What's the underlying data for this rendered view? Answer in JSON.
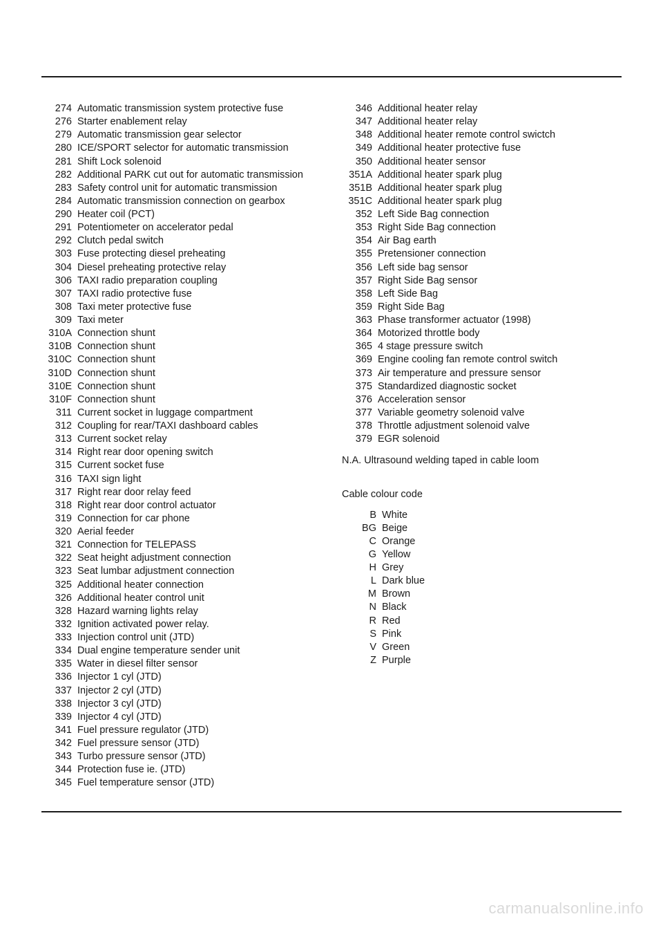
{
  "left_entries": [
    {
      "code": "274",
      "desc": "Automatic transmission system protective fuse"
    },
    {
      "code": "276",
      "desc": "Starter enablement relay"
    },
    {
      "code": "279",
      "desc": "Automatic transmission gear selector"
    },
    {
      "code": "280",
      "desc": "ICE/SPORT selector for automatic transmission"
    },
    {
      "code": "281",
      "desc": "Shift Lock solenoid"
    },
    {
      "code": "282",
      "desc": "Additional PARK cut out for automatic transmission"
    },
    {
      "code": "283",
      "desc": "Safety control unit for automatic transmission"
    },
    {
      "code": "284",
      "desc": "Automatic transmission connection on gearbox"
    },
    {
      "code": "290",
      "desc": "Heater coil (PCT)"
    },
    {
      "code": "291",
      "desc": "Potentiometer on accelerator pedal"
    },
    {
      "code": "292",
      "desc": "Clutch pedal switch"
    },
    {
      "code": "303",
      "desc": "Fuse protecting diesel preheating"
    },
    {
      "code": "304",
      "desc": "Diesel preheating protective relay"
    },
    {
      "code": "306",
      "desc": "TAXI radio preparation coupling"
    },
    {
      "code": "307",
      "desc": "TAXI radio protective fuse"
    },
    {
      "code": "308",
      "desc": "Taxi meter protective fuse"
    },
    {
      "code": "309",
      "desc": "Taxi meter"
    },
    {
      "code": "310A",
      "desc": "Connection shunt"
    },
    {
      "code": "310B",
      "desc": "Connection shunt"
    },
    {
      "code": "310C",
      "desc": "Connection shunt"
    },
    {
      "code": "310D",
      "desc": "Connection shunt"
    },
    {
      "code": "310E",
      "desc": "Connection shunt"
    },
    {
      "code": "310F",
      "desc": "Connection shunt"
    },
    {
      "code": "311",
      "desc": "Current socket in luggage compartment"
    },
    {
      "code": "312",
      "desc": "Coupling for rear/TAXI dashboard cables"
    },
    {
      "code": "313",
      "desc": "Current socket relay"
    },
    {
      "code": "314",
      "desc": "Right rear door opening switch"
    },
    {
      "code": "315",
      "desc": "Current socket fuse"
    },
    {
      "code": "316",
      "desc": "TAXI sign light"
    },
    {
      "code": "317",
      "desc": "Right rear door relay feed"
    },
    {
      "code": "318",
      "desc": "Right rear door control actuator"
    },
    {
      "code": "319",
      "desc": "Connection for car phone"
    },
    {
      "code": "320",
      "desc": "Aerial feeder"
    },
    {
      "code": "321",
      "desc": "Connection for TELEPASS"
    },
    {
      "code": "322",
      "desc": "Seat height adjustment connection"
    },
    {
      "code": "323",
      "desc": "Seat lumbar adjustment connection"
    },
    {
      "code": "325",
      "desc": "Additional heater connection"
    },
    {
      "code": "326",
      "desc": "Additional heater control unit"
    },
    {
      "code": "328",
      "desc": "Hazard warning lights relay"
    },
    {
      "code": "332",
      "desc": "Ignition activated power relay."
    },
    {
      "code": "333",
      "desc": "Injection control unit (JTD)"
    },
    {
      "code": "334",
      "desc": "Dual engine temperature sender unit"
    },
    {
      "code": "335",
      "desc": "Water in diesel filter sensor"
    },
    {
      "code": "336",
      "desc": "Injector 1 cyl (JTD)"
    },
    {
      "code": "337",
      "desc": "Injector 2 cyl (JTD)"
    },
    {
      "code": "338",
      "desc": "Injector 3 cyl (JTD)"
    },
    {
      "code": "339",
      "desc": "Injector 4 cyl (JTD)"
    },
    {
      "code": "341",
      "desc": "Fuel pressure regulator (JTD)"
    },
    {
      "code": "342",
      "desc": "Fuel pressure sensor (JTD)"
    },
    {
      "code": "343",
      "desc": "Turbo pressure sensor (JTD)"
    },
    {
      "code": "344",
      "desc": "Protection fuse ie. (JTD)"
    },
    {
      "code": "345",
      "desc": "Fuel temperature sensor (JTD)"
    }
  ],
  "right_entries": [
    {
      "code": "346",
      "desc": "Additional heater relay"
    },
    {
      "code": "347",
      "desc": "Additional heater relay"
    },
    {
      "code": "348",
      "desc": "Additional heater remote control swictch"
    },
    {
      "code": "349",
      "desc": "Additional heater protective fuse"
    },
    {
      "code": "350",
      "desc": "Additional heater sensor"
    },
    {
      "code": "351A",
      "desc": "Additional heater spark plug"
    },
    {
      "code": "351B",
      "desc": "Additional heater spark plug"
    },
    {
      "code": "351C",
      "desc": "Additional heater spark plug"
    },
    {
      "code": "352",
      "desc": "Left Side Bag connection"
    },
    {
      "code": "353",
      "desc": "Right Side Bag connection"
    },
    {
      "code": "354",
      "desc": "Air Bag earth"
    },
    {
      "code": "355",
      "desc": "Pretensioner connection"
    },
    {
      "code": "356",
      "desc": "Left side bag sensor"
    },
    {
      "code": "357",
      "desc": "Right Side Bag sensor"
    },
    {
      "code": "358",
      "desc": "Left Side Bag"
    },
    {
      "code": "359",
      "desc": "Right Side Bag"
    },
    {
      "code": "363",
      "desc": "Phase transformer actuator (1998)"
    },
    {
      "code": "364",
      "desc": "Motorized throttle body"
    },
    {
      "code": "365",
      "desc": "4 stage pressure switch"
    },
    {
      "code": "369",
      "desc": "Engine cooling fan remote control switch"
    },
    {
      "code": "373",
      "desc": "Air temperature and pressure sensor"
    },
    {
      "code": "375",
      "desc": "Standardized diagnostic socket"
    },
    {
      "code": "376",
      "desc": "Acceleration sensor"
    },
    {
      "code": "377",
      "desc": "Variable geometry solenoid valve"
    },
    {
      "code": "378",
      "desc": "Throttle adjustment solenoid valve"
    },
    {
      "code": "379",
      "desc": "EGR solenoid"
    }
  ],
  "note_na": "N.A. Ultrasound welding taped in cable loom",
  "colour_heading": "Cable colour code",
  "colours": [
    {
      "code": "B",
      "desc": "White"
    },
    {
      "code": "BG",
      "desc": "Beige"
    },
    {
      "code": "C",
      "desc": "Orange"
    },
    {
      "code": "G",
      "desc": "Yellow"
    },
    {
      "code": "H",
      "desc": "Grey"
    },
    {
      "code": "L",
      "desc": "Dark blue"
    },
    {
      "code": "M",
      "desc": "Brown"
    },
    {
      "code": "N",
      "desc": "Black"
    },
    {
      "code": "R",
      "desc": "Red"
    },
    {
      "code": "S",
      "desc": "Pink"
    },
    {
      "code": "V",
      "desc": "Green"
    },
    {
      "code": "Z",
      "desc": "Purple"
    }
  ],
  "watermark": "carmanualsonline.info"
}
